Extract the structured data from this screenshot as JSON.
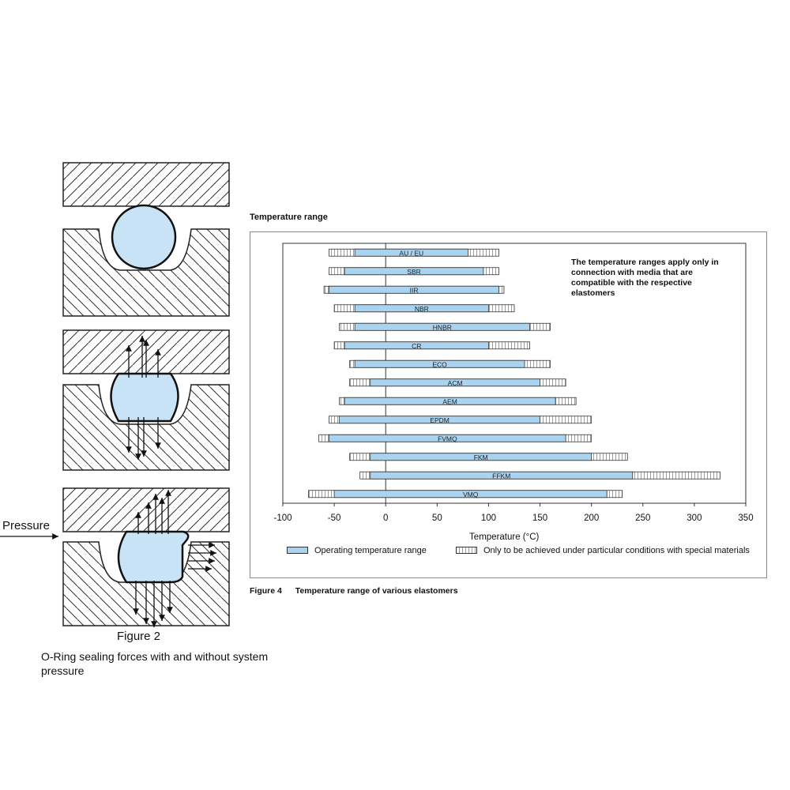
{
  "figure2": {
    "label": "Figure 2",
    "caption": "O-Ring sealing forces with and without system pressure",
    "pressure_label": "Pressure",
    "colors": {
      "oring": "#c9e3f6",
      "hatch": "#333333"
    }
  },
  "figure4": {
    "section_title": "Temperature range",
    "caption_label": "Figure 4",
    "caption_text": "Temperature range of various elastomers",
    "note": "The temperature ranges apply only in connection with media that are compatible with the respective elastomers",
    "legend": {
      "operating": "Operating temperature range",
      "special": "Only to be achieved under particular conditions with special materials"
    }
  },
  "chart_data": {
    "type": "bar",
    "orientation": "horizontal-range",
    "xlabel": "Temperature (°C)",
    "xlim": [
      -100,
      350
    ],
    "xticks": [
      -100,
      -50,
      0,
      50,
      100,
      150,
      200,
      250,
      300,
      350
    ],
    "categories": [
      "AU / EU",
      "SBR",
      "IIR",
      "NBR",
      "HNBR",
      "CR",
      "ECO",
      "ACM",
      "AEM",
      "EPDM",
      "FVMQ",
      "FKM",
      "FFKM",
      "VMQ"
    ],
    "series": [
      {
        "name": "Operating temperature range",
        "color": "#a9d3ef",
        "ranges": [
          [
            -30,
            80
          ],
          [
            -40,
            95
          ],
          [
            -55,
            110
          ],
          [
            -30,
            100
          ],
          [
            -30,
            140
          ],
          [
            -40,
            100
          ],
          [
            -30,
            135
          ],
          [
            -15,
            150
          ],
          [
            -40,
            165
          ],
          [
            -45,
            150
          ],
          [
            -55,
            175
          ],
          [
            -15,
            200
          ],
          [
            -15,
            240
          ],
          [
            -50,
            215
          ]
        ]
      },
      {
        "name": "Only to be achieved under particular conditions with special materials",
        "color": "#7fa6c9",
        "ranges": [
          [
            -55,
            110
          ],
          [
            -55,
            110
          ],
          [
            -60,
            115
          ],
          [
            -50,
            125
          ],
          [
            -45,
            160
          ],
          [
            -50,
            140
          ],
          [
            -35,
            160
          ],
          [
            -35,
            175
          ],
          [
            -45,
            185
          ],
          [
            -55,
            200
          ],
          [
            -65,
            200
          ],
          [
            -35,
            235
          ],
          [
            -25,
            325
          ],
          [
            -75,
            230
          ]
        ]
      }
    ],
    "grid": false,
    "legend_position": "bottom"
  }
}
